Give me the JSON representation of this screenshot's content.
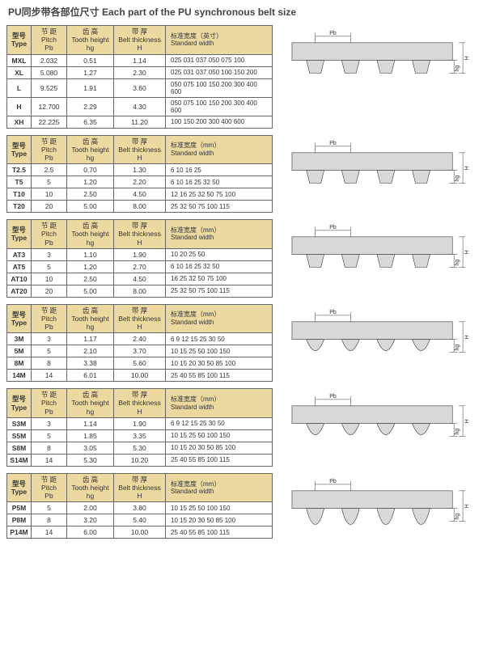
{
  "title": "PU同步带各部位尺寸 Each part of the PU synchronous belt size",
  "headers": {
    "type": "型号\nType",
    "pitch": "节 距\nPitch\nPb",
    "tooth": "齿 高\nTooth height\nhg",
    "belt": "带 厚\nBelt thickness\nH",
    "std_in": "标准宽度（英寸）\nStandard width",
    "std_mm": "标准宽度（mm）\nStandard width"
  },
  "labels": {
    "pb": "Pb",
    "hg": "hg",
    "h": "H"
  },
  "colors": {
    "header_bg": "#ecd9a0",
    "fill": "#d9d9d9",
    "stroke": "#333333"
  },
  "tables": [
    {
      "std_unit": "std_in",
      "profile": "trap",
      "rows": [
        {
          "type": "MXL",
          "pitch": "2.032",
          "tooth": "0.51",
          "belt": "1.14",
          "std": "025 031 037 050 075 100"
        },
        {
          "type": "XL",
          "pitch": "5.080",
          "tooth": "1.27",
          "belt": "2.30",
          "std": "025 031 037 050 100 150 200"
        },
        {
          "type": "L",
          "pitch": "9.525",
          "tooth": "1.91",
          "belt": "3.60",
          "std": "050 075 100 150 200 300 400 600"
        },
        {
          "type": "H",
          "pitch": "12.700",
          "tooth": "2.29",
          "belt": "4.30",
          "std": "050 075 100 150 200 300 400 600"
        },
        {
          "type": "XH",
          "pitch": "22.225",
          "tooth": "6.35",
          "belt": "11.20",
          "std": "100 150 200 300 400 600"
        }
      ]
    },
    {
      "std_unit": "std_mm",
      "profile": "trap",
      "rows": [
        {
          "type": "T2.5",
          "pitch": "2.5",
          "tooth": "0.70",
          "belt": "1.30",
          "std": "6 10 16 25"
        },
        {
          "type": "T5",
          "pitch": "5",
          "tooth": "1.20",
          "belt": "2.20",
          "std": "6 10 16 25 32 50"
        },
        {
          "type": "T10",
          "pitch": "10",
          "tooth": "2.50",
          "belt": "4.50",
          "std": "12 16 25 32 50 75 100"
        },
        {
          "type": "T20",
          "pitch": "20",
          "tooth": "5.00",
          "belt": "8.00",
          "std": "25 32 50 75 100 115"
        }
      ]
    },
    {
      "std_unit": "std_mm",
      "profile": "trap",
      "rows": [
        {
          "type": "AT3",
          "pitch": "3",
          "tooth": "1.10",
          "belt": "1.90",
          "std": "10 20 25 50"
        },
        {
          "type": "AT5",
          "pitch": "5",
          "tooth": "1.20",
          "belt": "2.70",
          "std": "6 10 16 25 32 50"
        },
        {
          "type": "AT10",
          "pitch": "10",
          "tooth": "2.50",
          "belt": "4.50",
          "std": "16 25 32 50 75 100"
        },
        {
          "type": "AT20",
          "pitch": "20",
          "tooth": "5.00",
          "belt": "8.00",
          "std": "25 32 50 75 100 115"
        }
      ]
    },
    {
      "std_unit": "std_mm",
      "profile": "round",
      "rows": [
        {
          "type": "3M",
          "pitch": "3",
          "tooth": "1.17",
          "belt": "2.40",
          "std": "6 9 12 15 25 30 50"
        },
        {
          "type": "5M",
          "pitch": "5",
          "tooth": "2.10",
          "belt": "3.70",
          "std": "10 15 25 50 100 150"
        },
        {
          "type": "8M",
          "pitch": "8",
          "tooth": "3.38",
          "belt": "5.60",
          "std": "10 15 20 30 50 85 100"
        },
        {
          "type": "14M",
          "pitch": "14",
          "tooth": "6.01",
          "belt": "10.00",
          "std": "25 40 55 85 100 115"
        }
      ]
    },
    {
      "std_unit": "std_mm",
      "profile": "round",
      "rows": [
        {
          "type": "S3M",
          "pitch": "3",
          "tooth": "1.14",
          "belt": "1.90",
          "std": "6 9 12 15 25 30 50"
        },
        {
          "type": "S5M",
          "pitch": "5",
          "tooth": "1.85",
          "belt": "3.35",
          "std": "10 15 25 50 100 150"
        },
        {
          "type": "S8M",
          "pitch": "8",
          "tooth": "3.05",
          "belt": "5.30",
          "std": "10 15 20 30 50 85 100"
        },
        {
          "type": "S14M",
          "pitch": "14",
          "tooth": "5.30",
          "belt": "10.20",
          "std": "25 40 55 85 100 115"
        }
      ]
    },
    {
      "std_unit": "std_mm",
      "profile": "para",
      "rows": [
        {
          "type": "P5M",
          "pitch": "5",
          "tooth": "2.00",
          "belt": "3.80",
          "std": "10 15 25 50 100 150"
        },
        {
          "type": "P8M",
          "pitch": "8",
          "tooth": "3.20",
          "belt": "5.40",
          "std": "10 15 20 30 50 85 100"
        },
        {
          "type": "P14M",
          "pitch": "14",
          "tooth": "6.00",
          "belt": "10.00",
          "std": "25 40 55 85 100 115"
        }
      ]
    }
  ]
}
